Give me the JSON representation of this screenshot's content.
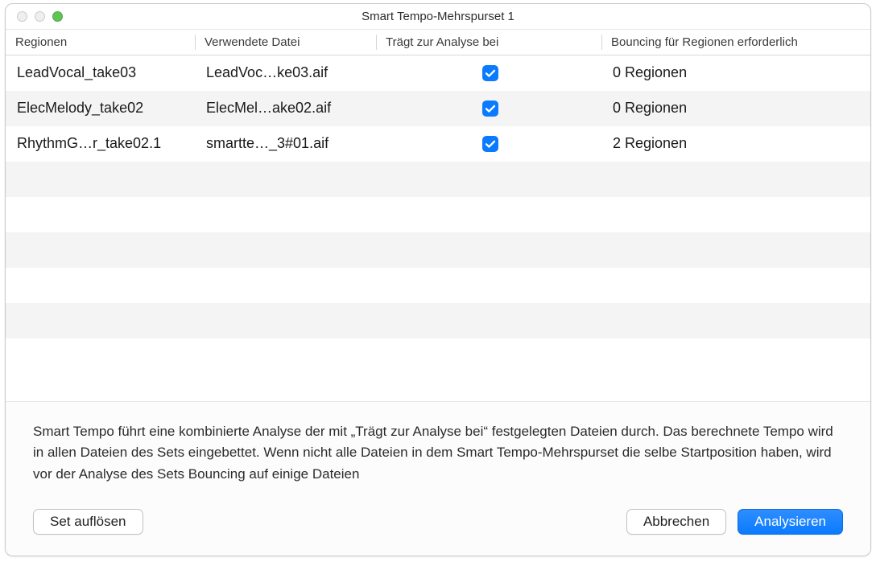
{
  "window": {
    "title": "Smart Tempo-Mehrspurset 1"
  },
  "colors": {
    "accent": "#0a7bff",
    "row_alt": "#f4f4f4",
    "header_divider": "#d6d6d6",
    "traffic_green": "#61c354",
    "traffic_inactive": "#efefef"
  },
  "table": {
    "columns": [
      {
        "key": "region",
        "label": "Regionen"
      },
      {
        "key": "file",
        "label": "Verwendete Datei"
      },
      {
        "key": "analysis",
        "label": "Trägt zur Analyse bei"
      },
      {
        "key": "bounce",
        "label": "Bouncing für Regionen erforderlich"
      }
    ],
    "rows": [
      {
        "region": "LeadVocal_take03",
        "file": "LeadVoc…ke03.aif",
        "analysis": true,
        "bounce": "0 Regionen"
      },
      {
        "region": "ElecMelody_take02",
        "file": "ElecMel…ake02.aif",
        "analysis": true,
        "bounce": "0 Regionen"
      },
      {
        "region": "RhythmG…r_take02.1",
        "file": "smartte…_3#01.aif",
        "analysis": true,
        "bounce": "2 Regionen"
      }
    ],
    "visible_row_slots": 9
  },
  "footer": {
    "text": "Smart Tempo führt eine kombinierte Analyse der mit „Trägt zur Analyse bei“ festgelegten Dateien durch. Das berechnete Tempo wird in allen Dateien des Sets eingebettet. Wenn nicht alle Dateien in dem Smart Tempo-Mehrspurset die selbe Startposition haben, wird vor der Analyse des Sets Bouncing auf einige Dateien"
  },
  "buttons": {
    "dissolve": "Set auflösen",
    "cancel": "Abbrechen",
    "analyze": "Analysieren"
  }
}
